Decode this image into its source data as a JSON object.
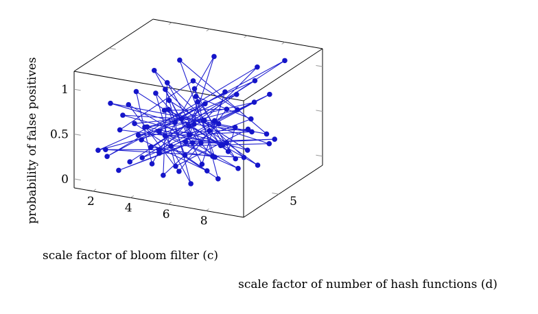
{
  "chart_data": {
    "type": "scatter",
    "title": "",
    "xlabel": "scale factor of bloom filter (c)",
    "ylabel": "scale factor of number of hash functions (d)",
    "zlabel": "probability of false positives",
    "x_ticks": [
      "2",
      "4",
      "6",
      "8"
    ],
    "y_ticks": [
      "5"
    ],
    "z_ticks": [
      "0",
      "0.5",
      "1"
    ],
    "xlim": [
      1,
      10
    ],
    "ylim": [
      1,
      10
    ],
    "zlim": [
      -0.1,
      1.2
    ],
    "grid": false,
    "legend": "none",
    "series_color": "#1515c9",
    "points": [
      [
        3.4,
        2.2,
        0.2
      ],
      [
        8.6,
        8.7,
        1.1
      ],
      [
        2.1,
        2.4,
        0.2
      ],
      [
        7.0,
        9.0,
        0.95
      ],
      [
        5.3,
        6.6,
        0.45
      ],
      [
        5.9,
        7.2,
        0.15
      ],
      [
        2.9,
        4.0,
        0.85
      ],
      [
        3.6,
        4.3,
        0.05
      ],
      [
        4.8,
        8.8,
        1.0
      ],
      [
        6.2,
        3.0,
        0.55
      ],
      [
        2.6,
        6.7,
        0.9
      ],
      [
        8.2,
        4.9,
        0.25
      ],
      [
        1.6,
        3.3,
        0.2
      ],
      [
        5.0,
        2.1,
        0.4
      ],
      [
        7.4,
        7.8,
        0.65
      ],
      [
        3.9,
        3.1,
        0.55
      ],
      [
        6.8,
        5.5,
        0.3
      ],
      [
        4.6,
        7.0,
        0.75
      ],
      [
        7.9,
        2.6,
        0.15
      ],
      [
        2.3,
        5.1,
        0.4
      ],
      [
        5.4,
        3.8,
        0.65
      ],
      [
        8.8,
        6.2,
        0.45
      ],
      [
        3.3,
        8.1,
        0.95
      ],
      [
        6.1,
        6.1,
        0.1
      ],
      [
        4.2,
        2.9,
        0.35
      ],
      [
        7.2,
        8.3,
        0.85
      ],
      [
        1.9,
        1.8,
        0.3
      ],
      [
        5.7,
        4.6,
        0.55
      ],
      [
        8.9,
        4.3,
        0.6
      ],
      [
        3.5,
        6.0,
        0.25
      ],
      [
        6.5,
        2.5,
        0.05
      ],
      [
        4.0,
        5.4,
        0.7
      ],
      [
        7.6,
        6.6,
        0.2
      ],
      [
        2.7,
        2.9,
        0.65
      ],
      [
        5.2,
        8.0,
        0.35
      ],
      [
        8.4,
        7.4,
        0.8
      ],
      [
        3.8,
        4.7,
        0.15
      ],
      [
        6.0,
        5.2,
        0.75
      ],
      [
        4.4,
        3.4,
        0.5
      ],
      [
        7.1,
        3.7,
        0.3
      ],
      [
        2.4,
        7.3,
        0.6
      ],
      [
        5.6,
        2.7,
        0.2
      ],
      [
        8.0,
        5.8,
        0.5
      ],
      [
        3.2,
        3.6,
        0.4
      ],
      [
        6.6,
        7.6,
        0.55
      ],
      [
        4.9,
        6.2,
        0.9
      ],
      [
        1.8,
        4.5,
        0.35
      ],
      [
        7.7,
        4.0,
        0.45
      ],
      [
        5.1,
        5.7,
        0.25
      ],
      [
        2.9,
        2.0,
        0.1
      ],
      [
        6.9,
        8.5,
        0.4
      ],
      [
        4.3,
        7.8,
        0.6
      ],
      [
        8.5,
        3.3,
        0.35
      ],
      [
        3.7,
        5.6,
        0.8
      ],
      [
        6.3,
        4.2,
        0.15
      ],
      [
        5.8,
        7.9,
        0.7
      ],
      [
        2.2,
        6.1,
        0.15
      ],
      [
        7.5,
        2.2,
        0.25
      ],
      [
        4.7,
        4.1,
        0.3
      ],
      [
        8.1,
        8.0,
        0.2
      ],
      [
        3.0,
        7.0,
        0.45
      ],
      [
        6.4,
        6.8,
        0.6
      ],
      [
        5.5,
        3.3,
        0.1
      ],
      [
        1.7,
        5.7,
        0.55
      ],
      [
        7.8,
        5.1,
        0.1
      ],
      [
        4.1,
        2.4,
        0.6
      ],
      [
        6.7,
        3.5,
        0.7
      ],
      [
        2.8,
        4.9,
        0.05
      ],
      [
        5.9,
        5.9,
        0.4
      ],
      [
        8.7,
        5.4,
        0.15
      ],
      [
        3.6,
        8.5,
        0.2
      ],
      [
        7.3,
        6.0,
        0.85
      ],
      [
        4.5,
        5.0,
        0.5
      ],
      [
        2.0,
        3.0,
        0.75
      ],
      [
        6.2,
        8.2,
        0.3
      ],
      [
        8.3,
        2.9,
        0.45
      ],
      [
        3.4,
        6.6,
        0.5
      ],
      [
        5.3,
        4.4,
        0.2
      ],
      [
        7.0,
        4.6,
        0.6
      ],
      [
        4.8,
        3.0,
        0.05
      ],
      [
        2.5,
        8.4,
        0.65
      ],
      [
        6.9,
        2.8,
        0.5
      ],
      [
        8.9,
        6.9,
        0.35
      ],
      [
        3.9,
        7.5,
        0.1
      ],
      [
        5.0,
        6.5,
        0.65
      ]
    ]
  }
}
